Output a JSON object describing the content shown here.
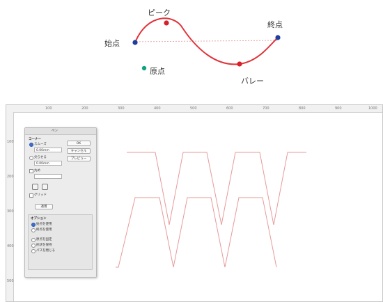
{
  "diagram": {
    "start_label": "始点",
    "peak_label": "ピーク",
    "end_label": "終点",
    "valley_label": "バレー",
    "origin_label": "原点",
    "curve_color": "#e0333a",
    "point_color_blue": "#1f3f9e",
    "point_color_red": "#d81f2b",
    "point_color_teal": "#14a087"
  },
  "ruler": {
    "top_ticks": [
      "100",
      "200",
      "300",
      "400",
      "500",
      "600",
      "700",
      "800",
      "900",
      "1000"
    ],
    "left_ticks": [
      "100",
      "200",
      "300",
      "400",
      "500"
    ]
  },
  "dialog": {
    "title": "ペン",
    "section_corner": "コーナー",
    "opt_corner_smooth": "スムーズ",
    "field_corner_value": "0.00mm",
    "opt_corner_sharp": "尖らせる",
    "field_sharp_value": "0.00mm",
    "opt_round": "丸め",
    "field_round_value": "",
    "opt_grid": "グリッド",
    "apply_button": "適用",
    "btn_ok": "OK",
    "btn_cancel": "キャンセル",
    "btn_preview": "プレビュー",
    "section_options": "オプション",
    "opt_a": "始点を使用",
    "opt_b": "終点を使用",
    "opt_c": "原点を固定",
    "opt_d": "形状を保持",
    "opt_e": "パスを閉じる"
  },
  "colors": {
    "wave_color": "#e79a9a",
    "dialog_bg": "#ececec"
  }
}
